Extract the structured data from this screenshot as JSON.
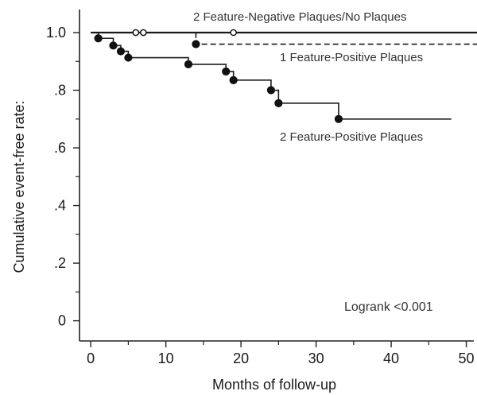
{
  "chart_data": {
    "type": "line",
    "title": "",
    "xlabel": "Months of follow-up",
    "ylabel": "Cumulative event-free rate:",
    "xlim": [
      -1.5,
      51
    ],
    "ylim": [
      -0.07,
      1.08
    ],
    "x_ticks": [
      0,
      10,
      20,
      30,
      40,
      50
    ],
    "x_tick_labels": [
      "0",
      "10",
      "20",
      "30",
      "40",
      "50"
    ],
    "y_ticks": [
      0,
      0.2,
      0.4,
      0.6,
      0.8,
      1.0
    ],
    "y_tick_labels": [
      "0",
      ".2",
      ".4",
      ".6",
      ".8",
      "1.0"
    ],
    "grid": false,
    "legend": "none",
    "series": [
      {
        "name": "2 Feature-Negative Plaques/No Plaques",
        "style": "solid",
        "steps": [
          [
            0,
            1.0
          ],
          [
            52,
            1.0
          ]
        ],
        "censored": [
          6,
          7,
          19
        ]
      },
      {
        "name": "1 Feature-Positive Plaques",
        "style": "dashed",
        "steps": [
          [
            0,
            1.0
          ],
          [
            14,
            0.96
          ],
          [
            52,
            0.96
          ]
        ],
        "events": [
          [
            14,
            0.96
          ]
        ],
        "censored": [
          6,
          7
        ]
      },
      {
        "name": "2 Feature-Positive Plaques",
        "style": "solid",
        "steps": [
          [
            0,
            1.0
          ],
          [
            1,
            0.98
          ],
          [
            3,
            0.955
          ],
          [
            4,
            0.935
          ],
          [
            5,
            0.913
          ],
          [
            13,
            0.89
          ],
          [
            18,
            0.865
          ],
          [
            19,
            0.835
          ],
          [
            24,
            0.8
          ],
          [
            25,
            0.755
          ],
          [
            33,
            0.7
          ],
          [
            48,
            0.7
          ]
        ],
        "events": [
          [
            1,
            0.98
          ],
          [
            3,
            0.955
          ],
          [
            4,
            0.935
          ],
          [
            5,
            0.913
          ],
          [
            13,
            0.89
          ],
          [
            18,
            0.865
          ],
          [
            19,
            0.835
          ],
          [
            24,
            0.8
          ],
          [
            25,
            0.755
          ],
          [
            33,
            0.7
          ]
        ]
      }
    ],
    "annotations": [
      "Logrank <0.001"
    ]
  }
}
